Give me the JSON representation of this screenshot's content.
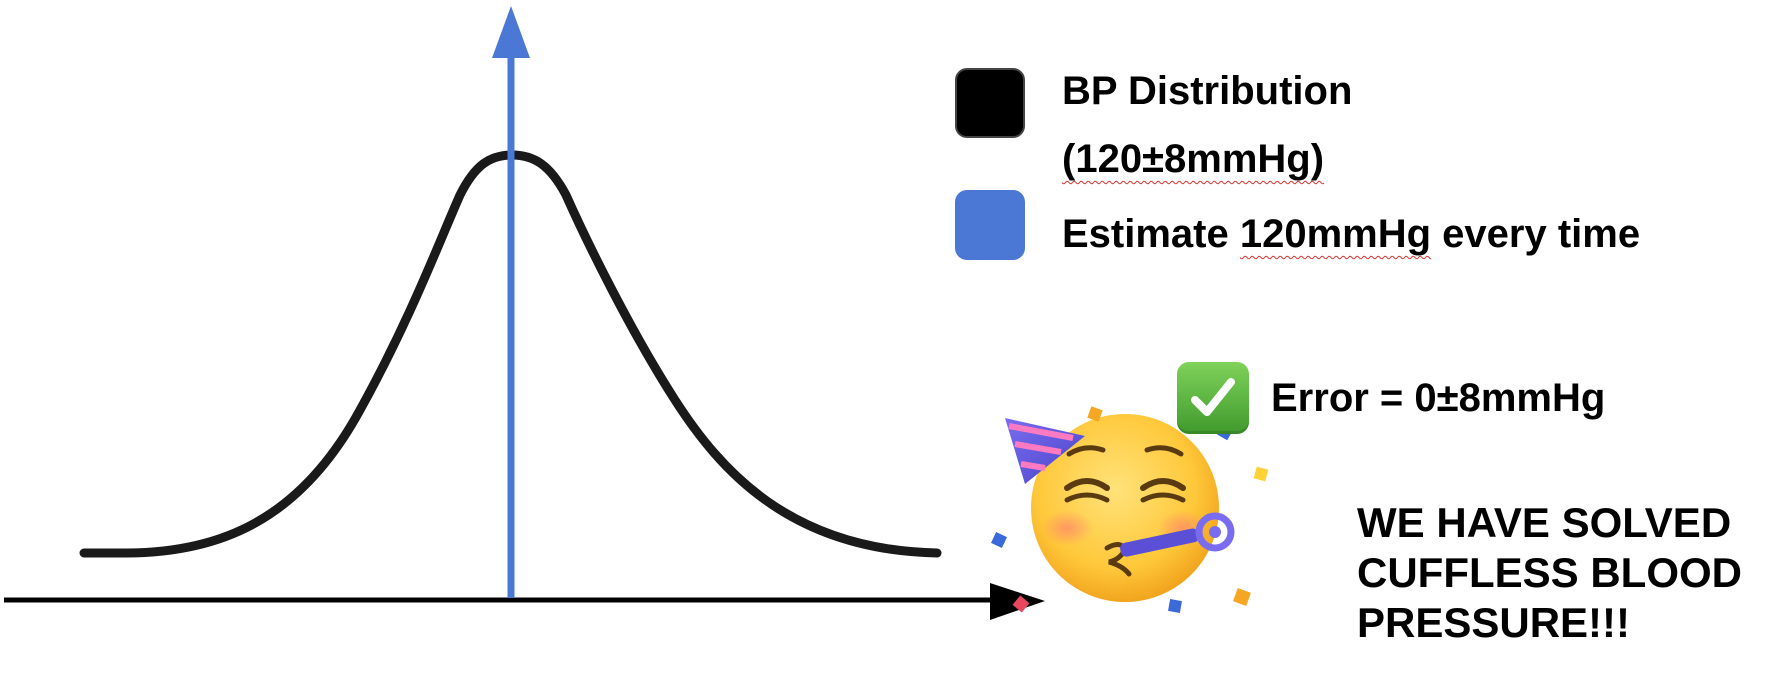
{
  "legend": {
    "items": [
      {
        "label_line1": "BP Distribution",
        "label_line2": "(120±8mmHg)",
        "color": "#000000"
      },
      {
        "label_prefix": "Estimate ",
        "label_flagged": "120mmHg",
        "label_suffix": " every time",
        "color": "#4a78d4"
      }
    ]
  },
  "result": {
    "icon": "check-mark-button-icon",
    "text": "Error = 0±8mmHg",
    "icon_color": "#4caf3a"
  },
  "celebration": {
    "icon": "partying-face-icon",
    "lines": [
      "WE HAVE SOLVED",
      "CUFFLESS BLOOD",
      "PRESSURE!!!"
    ]
  },
  "colors": {
    "curve": "#1a1a1a",
    "axis": "#000000",
    "estimate_arrow": "#4a78d4"
  }
}
